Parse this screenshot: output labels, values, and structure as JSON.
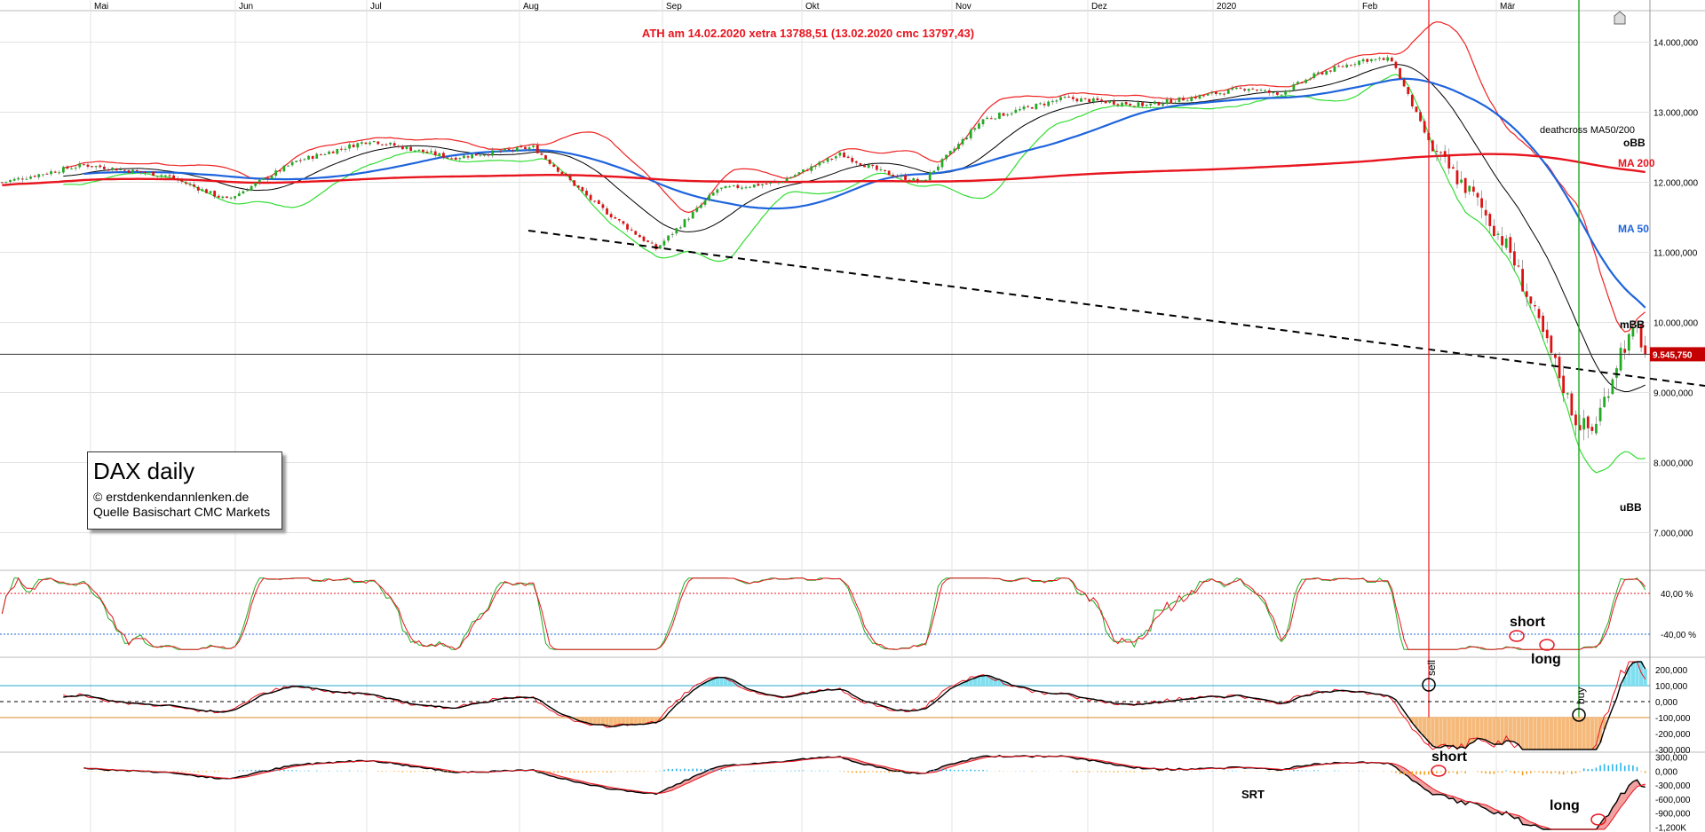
{
  "chart_data": {
    "type": "candlestick",
    "title": "DAX daily",
    "annotation_top": "ATH am 14.02.2020 xetra 13788,51 (13.02.2020  cmc 13797,43)",
    "months": [
      "Mai",
      "Jun",
      "Jul",
      "Aug",
      "Sep",
      "Okt",
      "Nov",
      "Dez",
      "2020",
      "Feb",
      "Mär"
    ],
    "price_axis": {
      "ylim": [
        6500,
        14450
      ],
      "ticks": [
        {
          "v": 14000,
          "label": "14.000,000"
        },
        {
          "v": 13000,
          "label": "13.000,000"
        },
        {
          "v": 12000,
          "label": "12.000,000"
        },
        {
          "v": 11000,
          "label": "11.000,000"
        },
        {
          "v": 10000,
          "label": "10.000,000"
        },
        {
          "v": 9000,
          "label": "9.000,000"
        },
        {
          "v": 8000,
          "label": "8.000,000"
        },
        {
          "v": 7000,
          "label": "7.000,000"
        }
      ],
      "last_price": 9545.75,
      "last_price_label": "9.545,750"
    },
    "series_labels": {
      "obb": "oBB",
      "ma200": "MA 200",
      "ma50": "MA 50",
      "mbb": "mBB",
      "ubb": "uBB",
      "deathcross": "deathcross MA50/200"
    },
    "candles_anchor": [
      [
        0,
        12000
      ],
      [
        20,
        12250
      ],
      [
        40,
        12100
      ],
      [
        55,
        11750
      ],
      [
        72,
        12300
      ],
      [
        90,
        12600
      ],
      [
        110,
        12350
      ],
      [
        130,
        12500
      ],
      [
        145,
        11700
      ],
      [
        160,
        11050
      ],
      [
        175,
        11900
      ],
      [
        190,
        12000
      ],
      [
        205,
        12400
      ],
      [
        215,
        12150
      ],
      [
        225,
        12000
      ],
      [
        240,
        12900
      ],
      [
        260,
        13200
      ],
      [
        280,
        13100
      ],
      [
        295,
        13250
      ],
      [
        305,
        13350
      ],
      [
        312,
        13250
      ],
      [
        322,
        13550
      ],
      [
        333,
        13750
      ],
      [
        340,
        13750
      ],
      [
        350,
        12450
      ],
      [
        360,
        11800
      ],
      [
        369,
        11000
      ],
      [
        375,
        10100
      ],
      [
        380,
        9400
      ],
      [
        385,
        8600
      ],
      [
        389,
        8450
      ],
      [
        392,
        8900
      ],
      [
        396,
        9600
      ],
      [
        400,
        9900
      ],
      [
        402,
        9550
      ]
    ],
    "stoch_axis": {
      "ticks": [
        {
          "v": 40,
          "label": "40,00 %"
        },
        {
          "v": -40,
          "label": "-40,00 %"
        }
      ]
    },
    "stoch_labels": {
      "short": "short",
      "long": "long"
    },
    "osc_axis": {
      "ticks": [
        {
          "v": 200000,
          "label": "200,000"
        },
        {
          "v": 100000,
          "label": "100,000"
        },
        {
          "v": 0,
          "label": "0,000"
        },
        {
          "v": -100000,
          "label": "-100,000"
        },
        {
          "v": -200000,
          "label": "-200,000"
        },
        {
          "v": -300000,
          "label": "-300,000"
        }
      ]
    },
    "osc_labels": {
      "sell": "sell",
      "buy": "buy"
    },
    "srt_axis": {
      "ticks": [
        {
          "v": 300000,
          "label": "300,000"
        },
        {
          "v": 0,
          "label": "0,000"
        },
        {
          "v": -300000,
          "label": "-300,000"
        },
        {
          "v": -600000,
          "label": "-600,000"
        },
        {
          "v": -900000,
          "label": "-900,000"
        },
        {
          "v": -1200000,
          "label": "-1,200K"
        }
      ]
    },
    "srt_labels": {
      "short": "short",
      "long": "long",
      "name": "SRT"
    }
  },
  "infobox": {
    "title": "DAX daily",
    "copyright": "© erstdenkendannlenken.de",
    "source": "Quelle Basischart CMC Markets"
  },
  "colors": {
    "up": "#22aa22",
    "down": "#dd1111",
    "ma50": "#1e64dc",
    "ma200": "#e8141e",
    "lower_band": "#33dd33",
    "upper_band": "#ee2222",
    "black": "#000000"
  }
}
